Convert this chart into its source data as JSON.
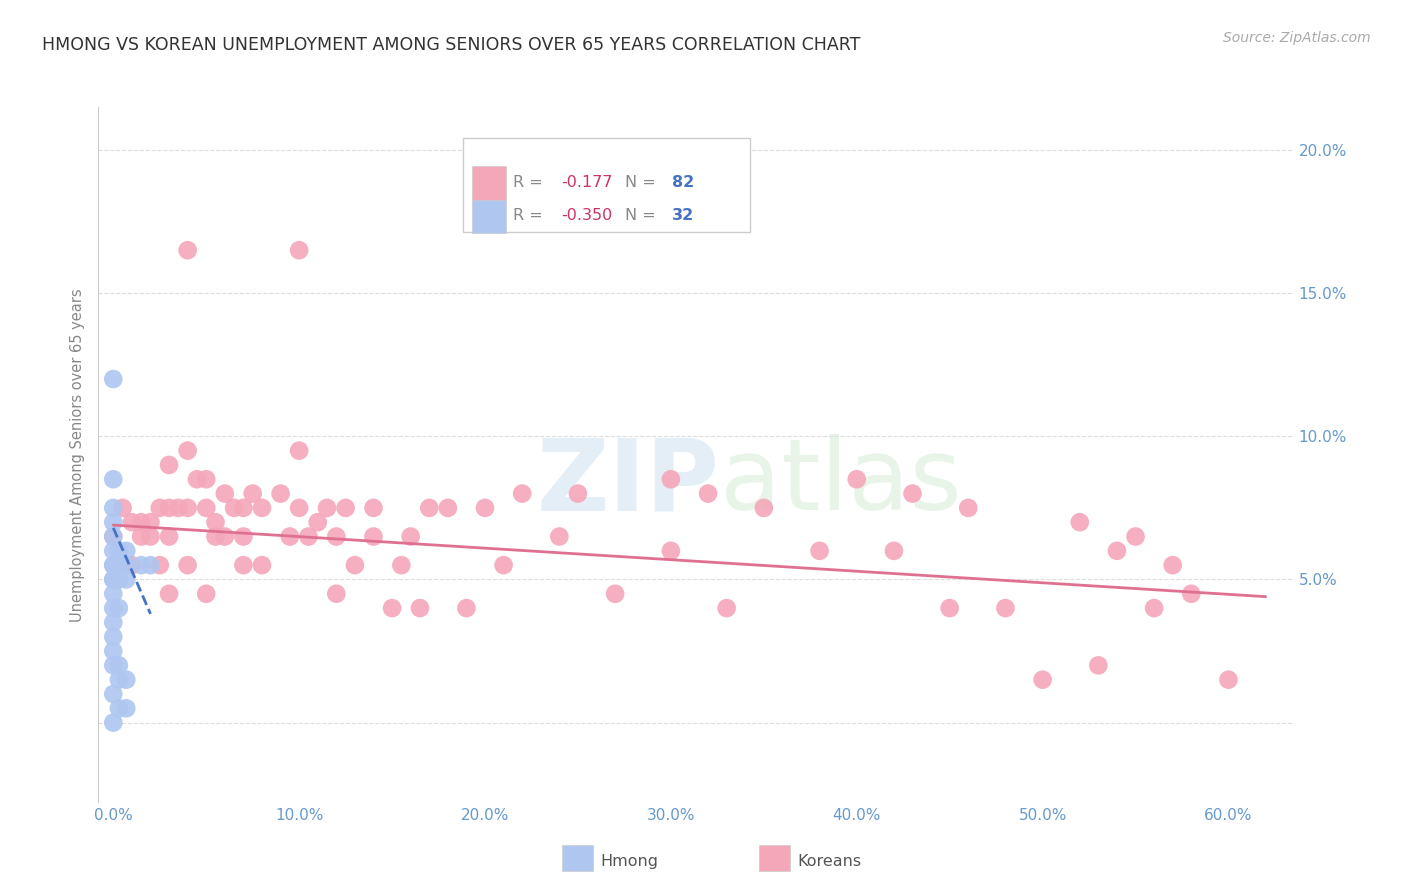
{
  "title": "HMONG VS KOREAN UNEMPLOYMENT AMONG SENIORS OVER 65 YEARS CORRELATION CHART",
  "source": "Source: ZipAtlas.com",
  "ylabel": "Unemployment Among Seniors over 65 years",
  "x_ticks": [
    0.0,
    0.1,
    0.2,
    0.3,
    0.4,
    0.5,
    0.6
  ],
  "x_tick_labels": [
    "0.0%",
    "10.0%",
    "20.0%",
    "30.0%",
    "40.0%",
    "50.0%",
    "60.0%"
  ],
  "y_ticks": [
    0.0,
    0.05,
    0.1,
    0.15,
    0.2
  ],
  "y_tick_labels_right": [
    "",
    "5.0%",
    "10.0%",
    "15.0%",
    "20.0%"
  ],
  "xlim": [
    -0.008,
    0.635
  ],
  "ylim": [
    -0.028,
    0.215
  ],
  "hmong_scatter_x": [
    0.0,
    0.0,
    0.0,
    0.0,
    0.0,
    0.0,
    0.0,
    0.0,
    0.0,
    0.0,
    0.0,
    0.0,
    0.0,
    0.0,
    0.0,
    0.0,
    0.0,
    0.0,
    0.003,
    0.003,
    0.003,
    0.003,
    0.003,
    0.003,
    0.003,
    0.007,
    0.007,
    0.007,
    0.007,
    0.007,
    0.015,
    0.02
  ],
  "hmong_scatter_y": [
    0.12,
    0.085,
    0.075,
    0.07,
    0.065,
    0.06,
    0.055,
    0.055,
    0.05,
    0.05,
    0.045,
    0.04,
    0.035,
    0.03,
    0.025,
    0.02,
    0.01,
    0.0,
    0.06,
    0.055,
    0.05,
    0.04,
    0.02,
    0.015,
    0.005,
    0.06,
    0.055,
    0.05,
    0.015,
    0.005,
    0.055,
    0.055
  ],
  "hmong_line_x": [
    0.0,
    0.02
  ],
  "hmong_line_y": [
    0.068,
    0.038
  ],
  "korean_scatter_x": [
    0.0,
    0.005,
    0.01,
    0.01,
    0.015,
    0.015,
    0.02,
    0.02,
    0.025,
    0.025,
    0.03,
    0.03,
    0.03,
    0.03,
    0.035,
    0.04,
    0.04,
    0.04,
    0.04,
    0.045,
    0.05,
    0.05,
    0.05,
    0.055,
    0.055,
    0.06,
    0.06,
    0.065,
    0.07,
    0.07,
    0.07,
    0.075,
    0.08,
    0.08,
    0.09,
    0.095,
    0.1,
    0.1,
    0.1,
    0.105,
    0.11,
    0.115,
    0.12,
    0.12,
    0.125,
    0.13,
    0.14,
    0.14,
    0.15,
    0.155,
    0.16,
    0.165,
    0.17,
    0.18,
    0.19,
    0.2,
    0.21,
    0.22,
    0.24,
    0.25,
    0.27,
    0.3,
    0.3,
    0.32,
    0.33,
    0.35,
    0.38,
    0.4,
    0.42,
    0.43,
    0.45,
    0.46,
    0.48,
    0.5,
    0.52,
    0.53,
    0.54,
    0.55,
    0.56,
    0.57,
    0.58,
    0.6
  ],
  "korean_scatter_y": [
    0.065,
    0.075,
    0.07,
    0.055,
    0.07,
    0.065,
    0.07,
    0.065,
    0.075,
    0.055,
    0.09,
    0.075,
    0.065,
    0.045,
    0.075,
    0.165,
    0.095,
    0.075,
    0.055,
    0.085,
    0.085,
    0.075,
    0.045,
    0.07,
    0.065,
    0.08,
    0.065,
    0.075,
    0.075,
    0.065,
    0.055,
    0.08,
    0.075,
    0.055,
    0.08,
    0.065,
    0.165,
    0.095,
    0.075,
    0.065,
    0.07,
    0.075,
    0.065,
    0.045,
    0.075,
    0.055,
    0.075,
    0.065,
    0.04,
    0.055,
    0.065,
    0.04,
    0.075,
    0.075,
    0.04,
    0.075,
    0.055,
    0.08,
    0.065,
    0.08,
    0.045,
    0.085,
    0.06,
    0.08,
    0.04,
    0.075,
    0.06,
    0.085,
    0.06,
    0.08,
    0.04,
    0.075,
    0.04,
    0.015,
    0.07,
    0.02,
    0.06,
    0.065,
    0.04,
    0.055,
    0.045,
    0.015
  ],
  "korean_line_x": [
    0.0,
    0.62
  ],
  "korean_line_y": [
    0.069,
    0.044
  ],
  "watermark_zip": "ZIP",
  "watermark_atlas": "atlas",
  "background_color": "#ffffff",
  "scatter_size": 180,
  "hmong_color": "#aec6f0",
  "korean_color": "#f4a7b9",
  "hmong_line_color": "#4472c4",
  "korean_line_color": "#e07090",
  "title_color": "#333333",
  "axis_color": "#6699cc",
  "grid_color": "#dddddd",
  "legend_R_color": "#cc3366",
  "legend_N_color": "#4472c4",
  "legend_label_color": "#888888",
  "hmong_R": "-0.350",
  "hmong_N": "32",
  "korean_R": "-0.177",
  "korean_N": "82"
}
